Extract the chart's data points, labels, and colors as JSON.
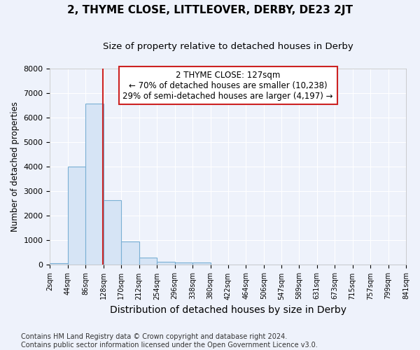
{
  "title": "2, THYME CLOSE, LITTLEOVER, DERBY, DE23 2JT",
  "subtitle": "Size of property relative to detached houses in Derby",
  "xlabel": "Distribution of detached houses by size in Derby",
  "ylabel": "Number of detached properties",
  "bin_edges": [
    2,
    44,
    86,
    128,
    170,
    212,
    254,
    296,
    338,
    380,
    422,
    464,
    506,
    547,
    589,
    631,
    673,
    715,
    757,
    799,
    841
  ],
  "bin_heights": [
    80,
    3990,
    6580,
    2630,
    960,
    305,
    120,
    100,
    90,
    0,
    0,
    0,
    0,
    0,
    0,
    0,
    0,
    0,
    0,
    0
  ],
  "bar_color": "#d6e4f5",
  "bar_edge_color": "#7aafd4",
  "vline_x": 127,
  "vline_color": "#cc2222",
  "annotation_line1": "2 THYME CLOSE: 127sqm",
  "annotation_line2": "← 70% of detached houses are smaller (10,238)",
  "annotation_line3": "29% of semi-detached houses are larger (4,197) →",
  "annotation_box_color": "white",
  "annotation_box_edge_color": "#cc2222",
  "ylim": [
    0,
    8000
  ],
  "xlim_left": 2,
  "xlim_right": 841,
  "tick_labels": [
    "2sqm",
    "44sqm",
    "86sqm",
    "128sqm",
    "170sqm",
    "212sqm",
    "254sqm",
    "296sqm",
    "338sqm",
    "380sqm",
    "422sqm",
    "464sqm",
    "506sqm",
    "547sqm",
    "589sqm",
    "631sqm",
    "673sqm",
    "715sqm",
    "757sqm",
    "799sqm",
    "841sqm"
  ],
  "footer_text": "Contains HM Land Registry data © Crown copyright and database right 2024.\nContains public sector information licensed under the Open Government Licence v3.0.",
  "background_color": "#eef2fb",
  "plot_background_color": "#eef2fb",
  "grid_color": "#ffffff",
  "title_fontsize": 11,
  "subtitle_fontsize": 9.5,
  "xlabel_fontsize": 10,
  "ylabel_fontsize": 8.5,
  "tick_fontsize": 7,
  "annotation_fontsize": 8.5,
  "footer_fontsize": 7
}
